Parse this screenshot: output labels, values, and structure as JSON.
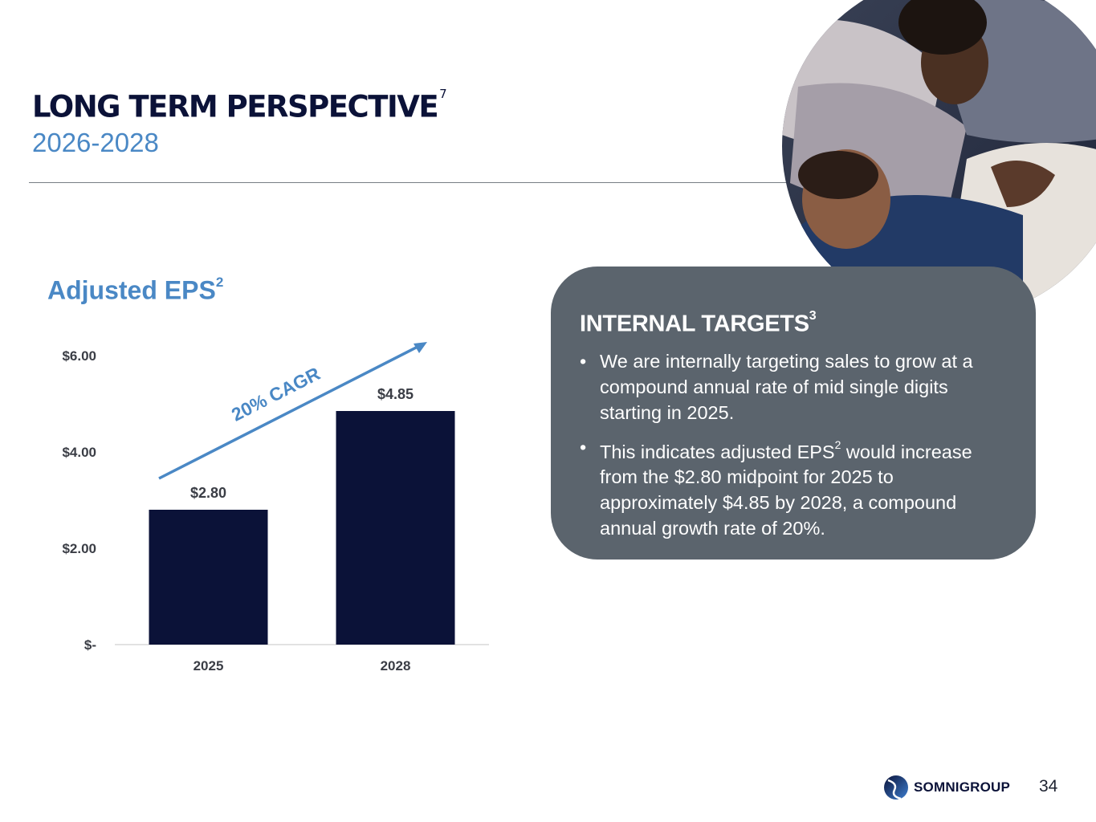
{
  "slide": {
    "title": "LONG TERM PERSPECTIVE",
    "title_footnote": "7",
    "subtitle": "2026-2028",
    "page_number": "34",
    "logo_text": "SOMNIGROUP"
  },
  "chart_title": {
    "text": "Adjusted EPS",
    "footnote": "2"
  },
  "chart_data": {
    "type": "bar",
    "categories": [
      "2025",
      "2028"
    ],
    "values": [
      2.8,
      4.85
    ],
    "data_labels": [
      "$2.80",
      "$4.85"
    ],
    "ylim": [
      0,
      6
    ],
    "y_ticks": [
      0,
      2,
      4,
      6
    ],
    "y_tick_labels": [
      "$-",
      "$2.00",
      "$4.00",
      "$6.00"
    ],
    "bar_color": "#0b1238",
    "annotation": "20% CAGR",
    "annotation_color": "#4a88c5",
    "grid": false
  },
  "targets": {
    "heading": "INTERNAL TARGETS",
    "heading_footnote": "3",
    "bullet_char": "•",
    "bullet1": "We are internally targeting sales to grow at a compound annual rate of mid single digits starting in 2025.",
    "bullet2_pre": "This indicates adjusted EPS",
    "bullet2_sup": "2",
    "bullet2_post": " would increase from the $2.80 midpoint for 2025 to approximately $4.85 by 2028, a compound annual growth rate of 20%."
  },
  "colors": {
    "navy": "#0b1238",
    "accent_blue": "#4a88c5",
    "panel_gray": "#5b646d"
  }
}
